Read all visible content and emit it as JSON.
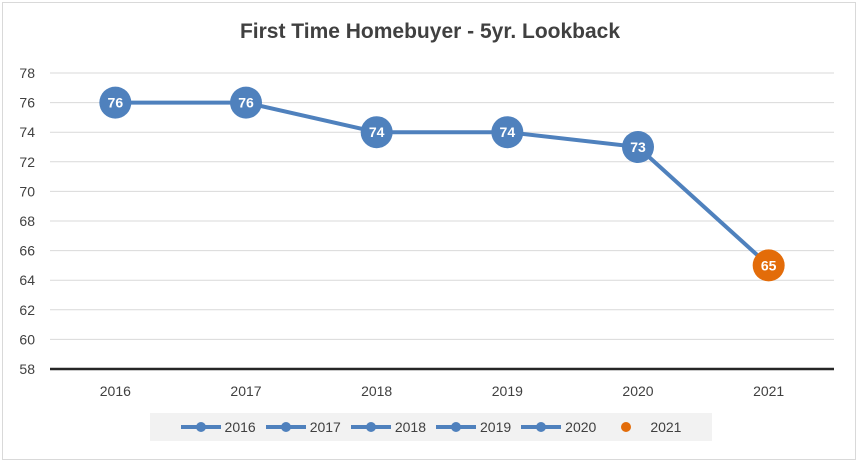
{
  "chart_data": {
    "type": "line",
    "title": "First Time Homebuyer - 5yr. Lookback",
    "categories": [
      "2016",
      "2017",
      "2018",
      "2019",
      "2020",
      "2021"
    ],
    "values": [
      76,
      76,
      74,
      74,
      73,
      65
    ],
    "point_colors": [
      "#4f81bd",
      "#4f81bd",
      "#4f81bd",
      "#4f81bd",
      "#4f81bd",
      "#e36c09"
    ],
    "line_color": "#4f81bd",
    "ylim": [
      58,
      78
    ],
    "yticks": [
      58,
      60,
      62,
      64,
      66,
      68,
      70,
      72,
      74,
      76,
      78
    ],
    "ytick_labels": [
      "58",
      "60",
      "62",
      "64",
      "66",
      "68",
      "70",
      "72",
      "74",
      "76",
      "78"
    ],
    "grid": true,
    "legend_position": "bottom",
    "legend": [
      {
        "label": "2016",
        "color": "#4f81bd",
        "line": true
      },
      {
        "label": "2017",
        "color": "#4f81bd",
        "line": true
      },
      {
        "label": "2018",
        "color": "#4f81bd",
        "line": true
      },
      {
        "label": "2019",
        "color": "#4f81bd",
        "line": true
      },
      {
        "label": "2020",
        "color": "#4f81bd",
        "line": true
      },
      {
        "label": "2021",
        "color": "#e36c09",
        "line": false
      }
    ]
  }
}
